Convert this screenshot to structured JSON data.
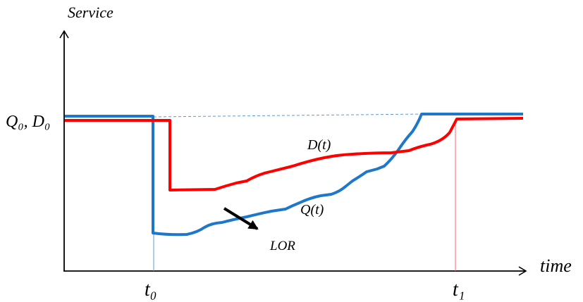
{
  "diagram": {
    "y_axis_label": "Service",
    "x_axis_label": "time",
    "y_level_label": "Q₀, D₀",
    "t0_label": "t₀",
    "t1_label": "t₁",
    "series": [
      {
        "name": "D(t)",
        "color": "#ff0000"
      },
      {
        "name": "Q(t)",
        "color": "#1f77c9"
      }
    ],
    "annotation": "LOR",
    "colors": {
      "axis": "#000000",
      "guide": "#1f77c9",
      "t1_marker": "#ff6666"
    }
  }
}
